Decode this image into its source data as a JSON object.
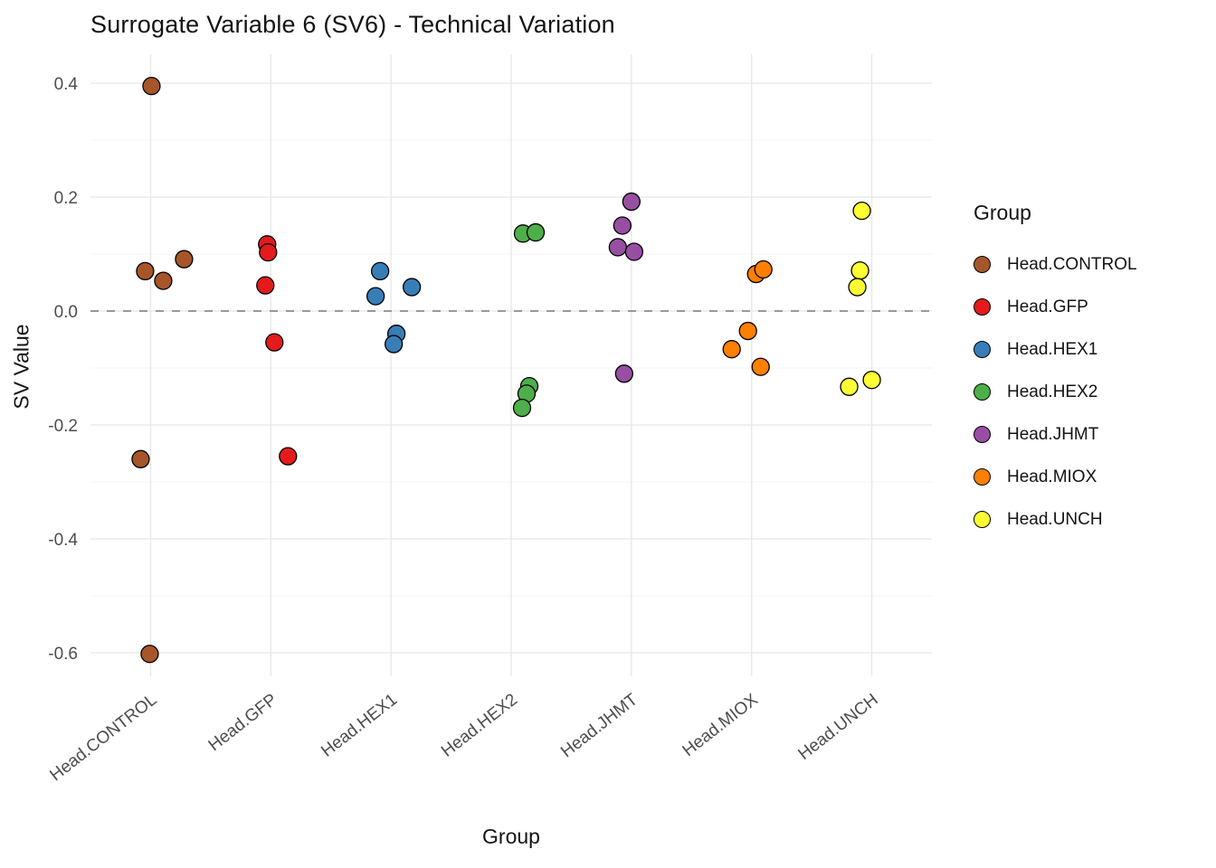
{
  "chart_data": {
    "type": "scatter",
    "title": "Surrogate Variable 6 (SV6) - Technical Variation",
    "xlabel": "Group",
    "ylabel": "SV Value",
    "categories": [
      "Head.CONTROL",
      "Head.GFP",
      "Head.HEX1",
      "Head.HEX2",
      "Head.JHMT",
      "Head.MIOX",
      "Head.UNCH"
    ],
    "y_ticks": [
      -0.6,
      -0.4,
      -0.2,
      0.0,
      0.2,
      0.4
    ],
    "y_minor_ticks": [
      -0.5,
      -0.3,
      -0.1,
      0.1,
      0.3
    ],
    "ylim": [
      -0.65,
      0.45
    ],
    "grid": true,
    "reference_line": {
      "y": 0,
      "style": "dashed",
      "color": "#9a9a9a"
    },
    "legend": {
      "title": "Group",
      "position": "right"
    },
    "point_style": {
      "radius": 9.5,
      "stroke": "#000000"
    },
    "series": [
      {
        "name": "Head.CONTROL",
        "color": "#A65628",
        "points": [
          {
            "y": 0.395,
            "dx": 1
          },
          {
            "y": 0.07,
            "dx": -6
          },
          {
            "y": 0.053,
            "dx": 14
          },
          {
            "y": 0.091,
            "dx": 37
          },
          {
            "y": -0.26,
            "dx": -11
          },
          {
            "y": -0.602,
            "dx": -1
          }
        ]
      },
      {
        "name": "Head.GFP",
        "color": "#E41A1C",
        "points": [
          {
            "y": 0.117,
            "dx": -4
          },
          {
            "y": 0.103,
            "dx": -3
          },
          {
            "y": 0.045,
            "dx": -6
          },
          {
            "y": -0.055,
            "dx": 4
          },
          {
            "y": -0.255,
            "dx": 19
          }
        ]
      },
      {
        "name": "Head.HEX1",
        "color": "#377EB8",
        "points": [
          {
            "y": 0.07,
            "dx": -12
          },
          {
            "y": 0.026,
            "dx": -17
          },
          {
            "y": 0.042,
            "dx": 23
          },
          {
            "y": -0.04,
            "dx": 6
          },
          {
            "y": -0.058,
            "dx": 3
          }
        ]
      },
      {
        "name": "Head.HEX2",
        "color": "#4DAF4A",
        "points": [
          {
            "y": 0.136,
            "dx": 13
          },
          {
            "y": 0.138,
            "dx": 27
          },
          {
            "y": -0.132,
            "dx": 20
          },
          {
            "y": -0.145,
            "dx": 17
          },
          {
            "y": -0.17,
            "dx": 12
          }
        ]
      },
      {
        "name": "Head.JHMT",
        "color": "#984EA3",
        "points": [
          {
            "y": 0.192,
            "dx": 0
          },
          {
            "y": 0.15,
            "dx": -10
          },
          {
            "y": 0.112,
            "dx": -15
          },
          {
            "y": 0.104,
            "dx": 3
          },
          {
            "y": -0.11,
            "dx": -8
          }
        ]
      },
      {
        "name": "Head.MIOX",
        "color": "#FF7F00",
        "points": [
          {
            "y": 0.065,
            "dx": 5
          },
          {
            "y": 0.073,
            "dx": 13
          },
          {
            "y": -0.035,
            "dx": -4
          },
          {
            "y": -0.067,
            "dx": -22
          },
          {
            "y": -0.098,
            "dx": 10
          }
        ]
      },
      {
        "name": "Head.UNCH",
        "color": "#FFFF33",
        "points": [
          {
            "y": 0.176,
            "dx": -11
          },
          {
            "y": 0.071,
            "dx": -13
          },
          {
            "y": 0.042,
            "dx": -16
          },
          {
            "y": -0.133,
            "dx": -25
          },
          {
            "y": -0.121,
            "dx": 0
          }
        ]
      }
    ]
  }
}
